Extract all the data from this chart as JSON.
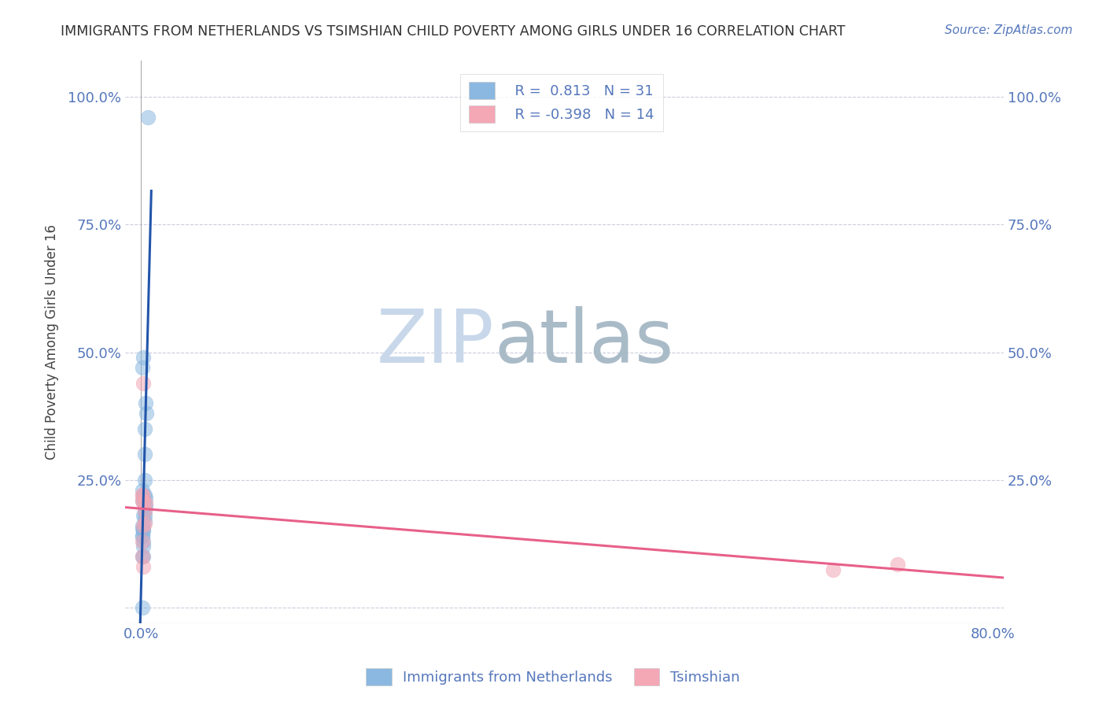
{
  "title": "IMMIGRANTS FROM NETHERLANDS VS TSIMSHIAN CHILD POVERTY AMONG GIRLS UNDER 16 CORRELATION CHART",
  "source": "Source: ZipAtlas.com",
  "xlabel_label": "Immigrants from Netherlands",
  "ylabel_label": "Child Poverty Among Girls Under 16",
  "watermark_zip": "ZIP",
  "watermark_atlas": "atlas",
  "legend_blue_R": "0.813",
  "legend_blue_N": "31",
  "legend_pink_R": "-0.398",
  "legend_pink_N": "14",
  "blue_color": "#8BB8E0",
  "pink_color": "#F4A7B5",
  "blue_line_color": "#2255AA",
  "pink_line_color": "#E8608A",
  "title_color": "#333333",
  "axis_label_color": "#5577BB",
  "watermark_color": "#C8D8EA",
  "watermark_atlas_color": "#AABBC8",
  "blue_scatter_x": [
    0.002,
    0.003,
    0.001,
    0.001,
    0.002,
    0.003,
    0.003,
    0.004,
    0.004,
    0.003,
    0.002,
    0.001,
    0.002,
    0.003,
    0.001,
    0.002,
    0.003,
    0.004,
    0.002,
    0.001,
    0.001,
    0.002,
    0.001,
    0.003,
    0.001,
    0.002,
    0.003,
    0.001,
    0.002,
    0.005,
    0.006
  ],
  "blue_scatter_y": [
    0.215,
    0.22,
    0.21,
    0.23,
    0.18,
    0.19,
    0.2,
    0.2,
    0.215,
    0.18,
    0.15,
    0.14,
    0.13,
    0.25,
    0.47,
    0.49,
    0.35,
    0.4,
    0.1,
    0.14,
    0.155,
    0.12,
    0.1,
    0.3,
    0.0,
    0.22,
    0.17,
    0.16,
    0.155,
    0.38,
    0.96
  ],
  "pink_scatter_x": [
    0.002,
    0.001,
    0.001,
    0.002,
    0.003,
    0.004,
    0.003,
    0.002,
    0.001,
    0.001,
    0.002,
    0.65,
    0.71,
    0.001
  ],
  "pink_scatter_y": [
    0.44,
    0.22,
    0.22,
    0.205,
    0.19,
    0.205,
    0.165,
    0.16,
    0.13,
    0.1,
    0.08,
    0.075,
    0.085,
    0.21
  ],
  "xlim": [
    -0.015,
    0.81
  ],
  "ylim": [
    -0.03,
    1.07
  ],
  "xtick_positions": [
    0.0,
    0.16,
    0.32,
    0.48,
    0.64,
    0.8
  ],
  "xtick_labels": [
    "0.0%",
    "",
    "",
    "",
    "",
    "80.0%"
  ],
  "ytick_positions": [
    0.0,
    0.25,
    0.5,
    0.75,
    1.0
  ],
  "ytick_labels_left": [
    "",
    "25.0%",
    "50.0%",
    "75.0%",
    "100.0%"
  ],
  "ytick_labels_right": [
    "",
    "25.0%",
    "50.0%",
    "75.0%",
    "100.0%"
  ],
  "background_color": "#FFFFFF",
  "grid_color": "#CCCCDD"
}
